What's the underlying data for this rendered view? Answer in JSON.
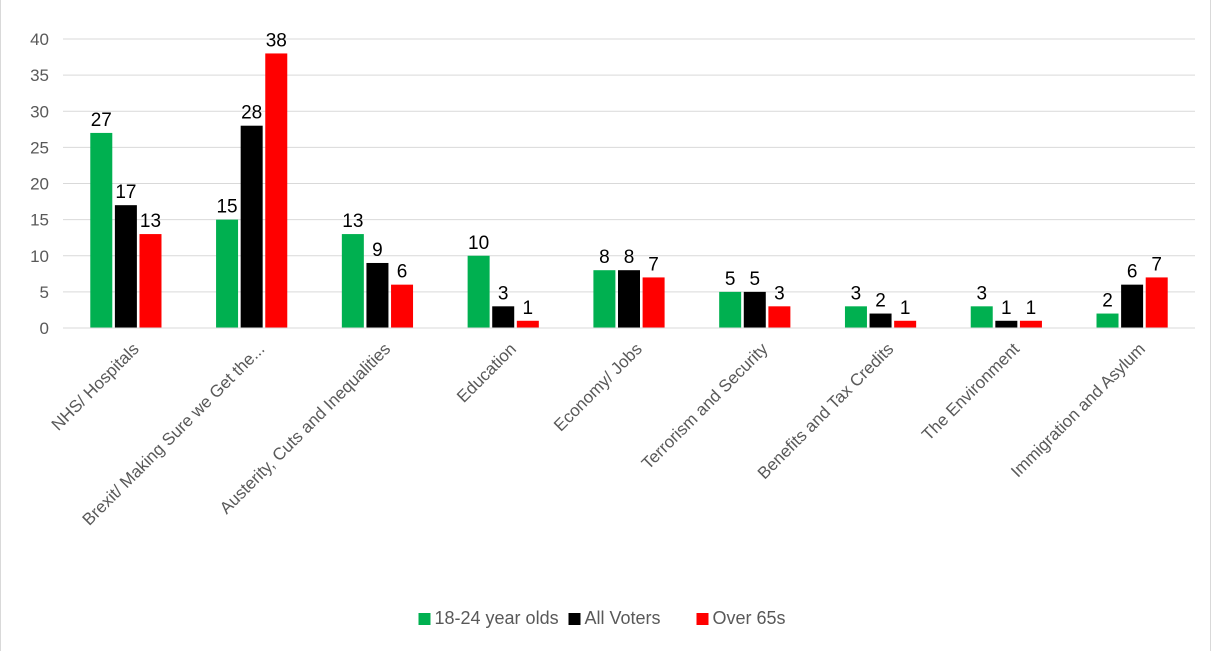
{
  "chart_data": {
    "type": "bar",
    "title": "",
    "xlabel": "",
    "ylabel": "",
    "ylim": [
      0,
      40
    ],
    "yticks": [
      0,
      5,
      10,
      15,
      20,
      25,
      30,
      35,
      40
    ],
    "grid": true,
    "legend_position": "bottom",
    "categories": [
      "NHS/ Hospitals",
      "Brexit/ Making Sure we Get the...",
      "Austerity, Cuts and Inequalities",
      "Education",
      "Economy/ Jobs",
      "Terrorism and Security",
      "Benefits and Tax Credits",
      "The Environment",
      "Immigration and Asylum"
    ],
    "series": [
      {
        "name": "18-24 year olds",
        "color": "#00b050",
        "values": [
          27,
          15,
          13,
          10,
          8,
          5,
          3,
          3,
          2
        ]
      },
      {
        "name": "All Voters",
        "color": "#000000",
        "values": [
          17,
          28,
          9,
          3,
          8,
          5,
          2,
          1,
          6
        ]
      },
      {
        "name": "Over 65s",
        "color": "#ff0000",
        "values": [
          13,
          38,
          6,
          1,
          7,
          3,
          1,
          1,
          7
        ]
      }
    ]
  }
}
